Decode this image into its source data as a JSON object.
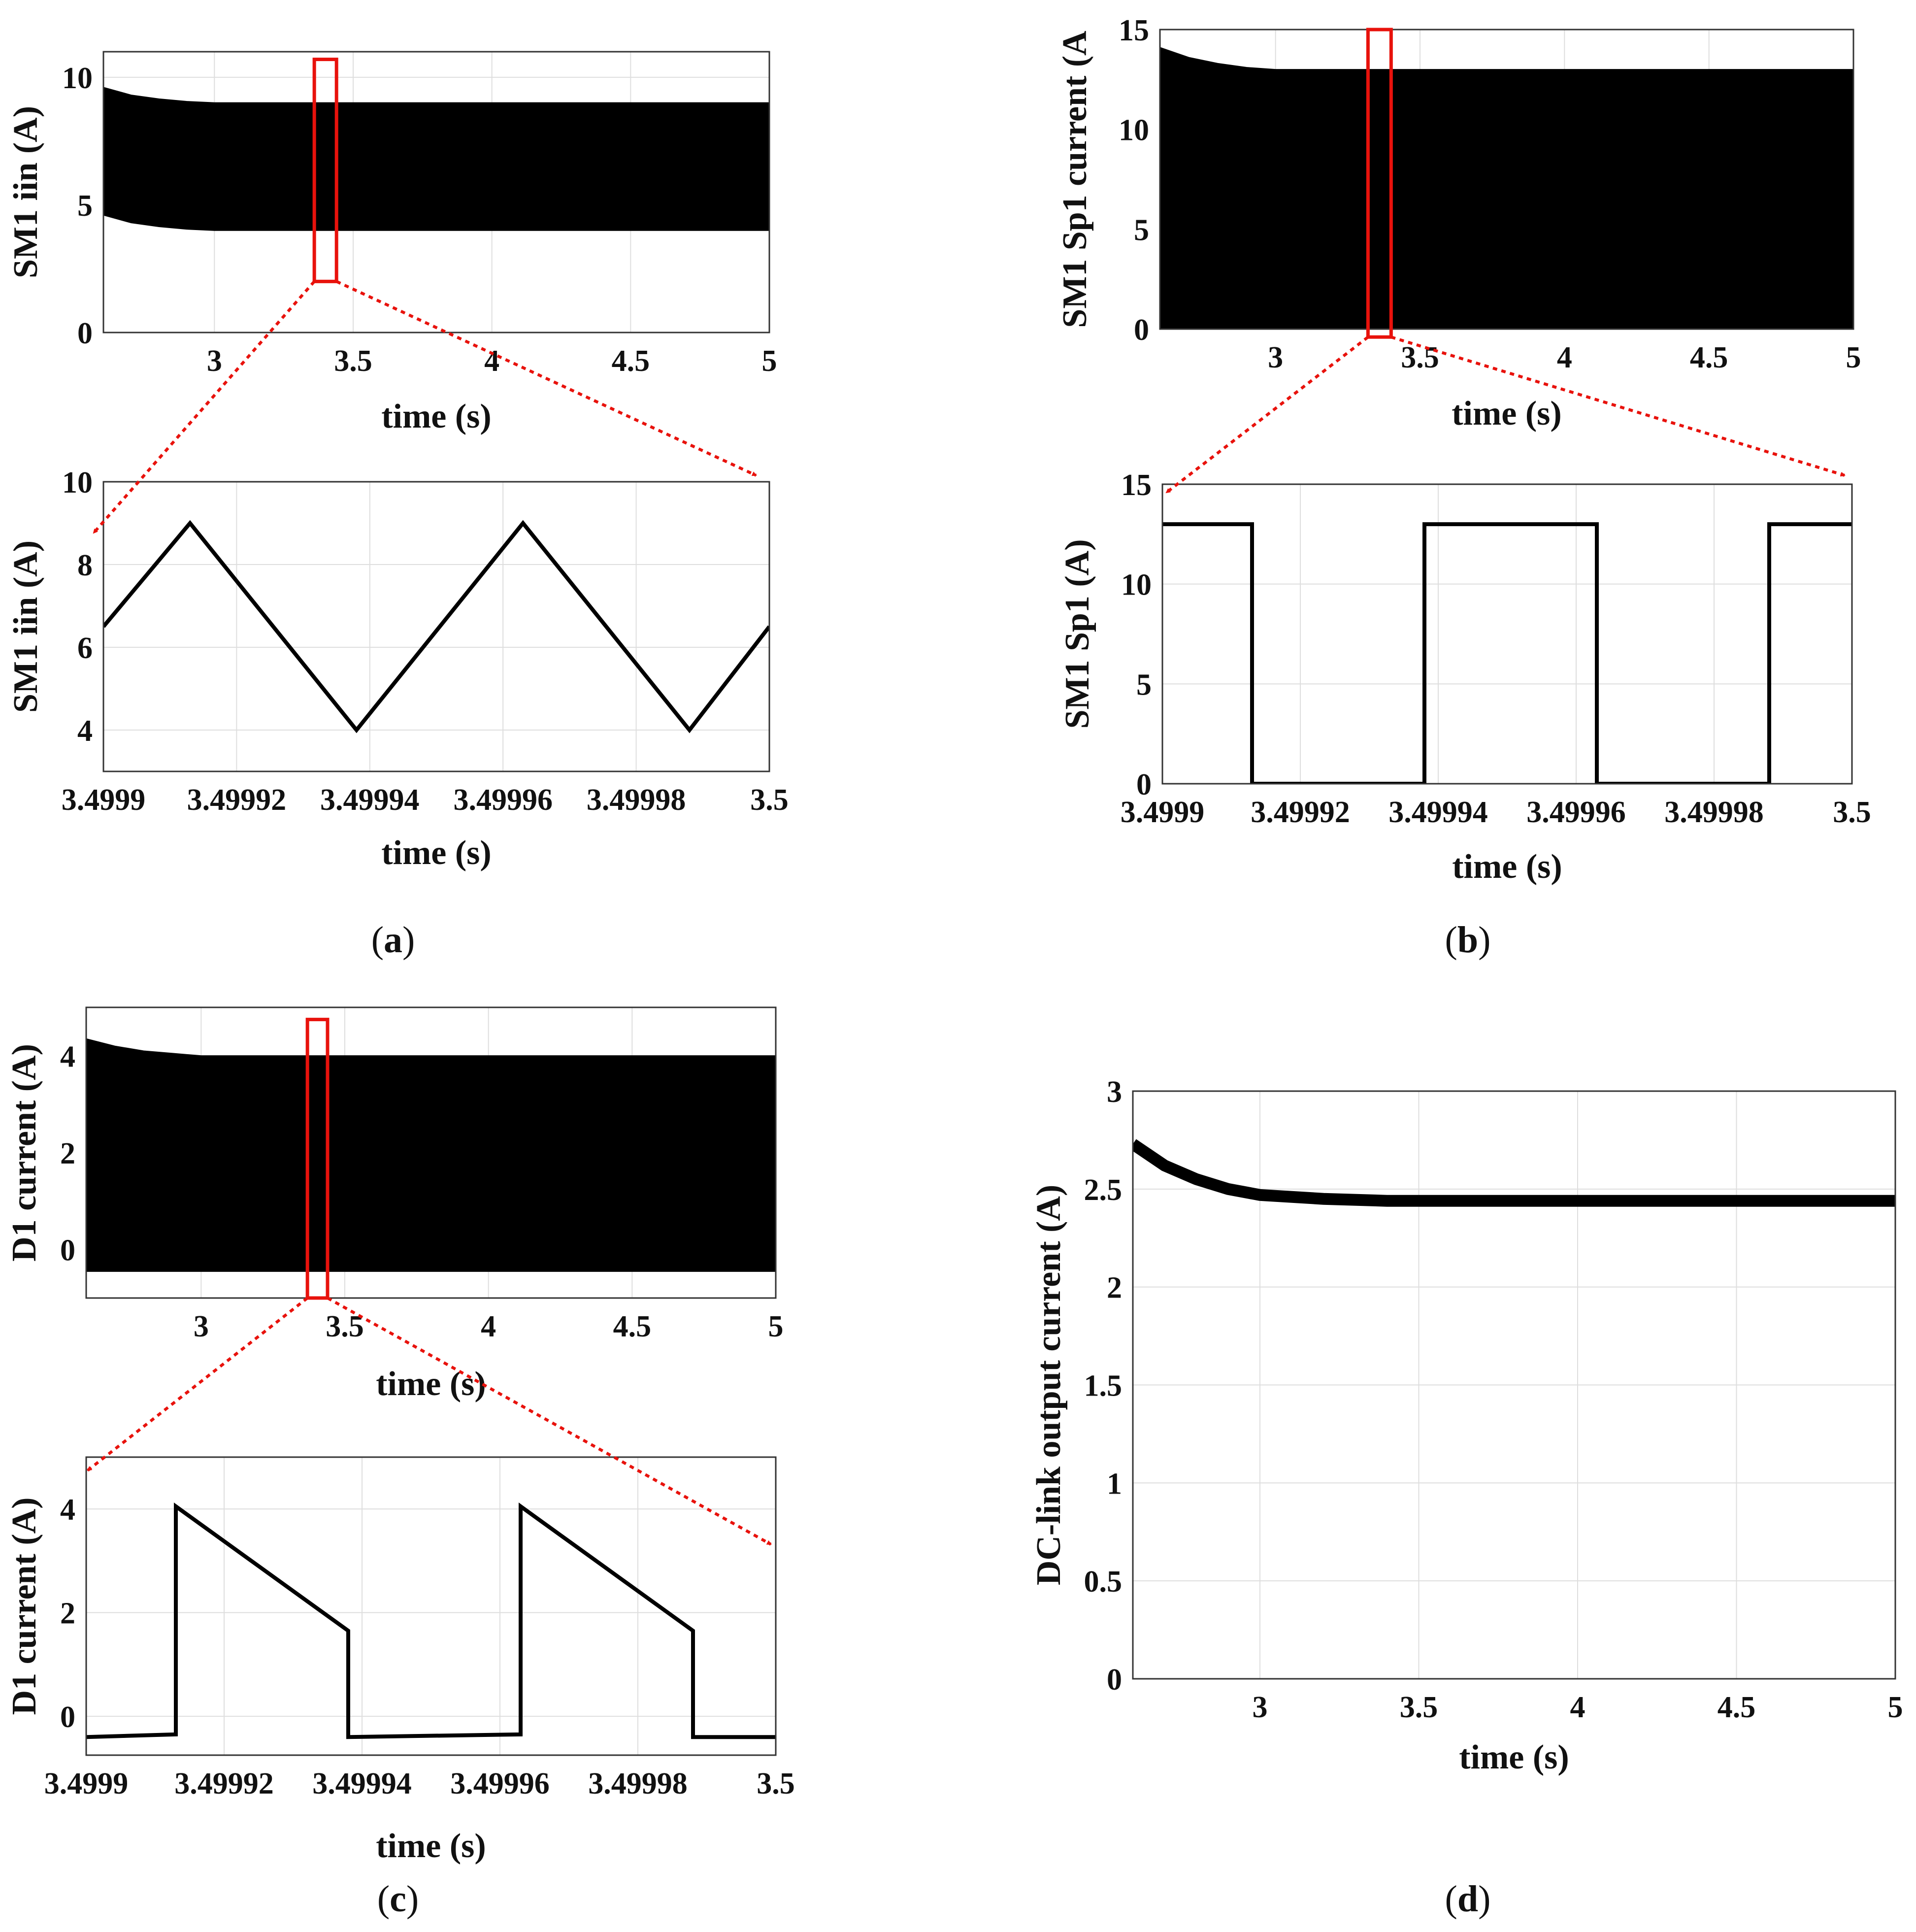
{
  "figure": {
    "captions": [
      {
        "open": "(",
        "letter": "a",
        "close": ")"
      },
      {
        "open": "(",
        "letter": "b",
        "close": ")"
      },
      {
        "open": "(",
        "letter": "c",
        "close": ")"
      },
      {
        "open": "(",
        "letter": "d",
        "close": ")"
      }
    ],
    "colors": {
      "trace": "#000000",
      "highlight": "#e8120c",
      "grid": "#dedede"
    }
  },
  "chart_data": [
    {
      "id": "a_overview",
      "type": "area",
      "title": "",
      "xlabel": "time (s)",
      "ylabel": "SM1 iin (A)",
      "xlim": [
        2.6,
        5
      ],
      "ylim": [
        0,
        11
      ],
      "xticks": [
        {
          "v": 3,
          "label": "3"
        },
        {
          "v": 3.5,
          "label": "3.5"
        },
        {
          "v": 4,
          "label": "4"
        },
        {
          "v": 4.5,
          "label": "4.5"
        },
        {
          "v": 5,
          "label": "5"
        }
      ],
      "yticks": [
        {
          "v": 0,
          "label": "0"
        },
        {
          "v": 5,
          "label": "5"
        },
        {
          "v": 10,
          "label": "10"
        }
      ],
      "series": [
        {
          "name": "upper envelope",
          "x": [
            2.6,
            2.7,
            2.8,
            2.9,
            3.0,
            3.2,
            3.5,
            4.0,
            4.5,
            5.0
          ],
          "y": [
            9.6,
            9.3,
            9.15,
            9.05,
            9.0,
            9.0,
            9.0,
            9.0,
            9.0,
            9.0
          ]
        },
        {
          "name": "lower envelope",
          "x": [
            2.6,
            2.7,
            2.8,
            2.9,
            3.0,
            3.2,
            3.5,
            4.0,
            4.5,
            5.0
          ],
          "y": [
            4.6,
            4.3,
            4.15,
            4.05,
            4.0,
            4.0,
            4.0,
            4.0,
            4.0,
            4.0
          ]
        }
      ],
      "zoom_window": {
        "x": [
          3.36,
          3.44
        ],
        "y": [
          2.0,
          10.7
        ]
      }
    },
    {
      "id": "a_zoom",
      "type": "line",
      "title": "",
      "xlabel": "time (s)",
      "ylabel": "SM1 iin (A)",
      "xlim": [
        3.4999,
        3.5
      ],
      "ylim": [
        3,
        10
      ],
      "xticks": [
        {
          "v": 3.4999,
          "label": "3.4999"
        },
        {
          "v": 3.49992,
          "label": "3.49992"
        },
        {
          "v": 3.49994,
          "label": "3.49994"
        },
        {
          "v": 3.49996,
          "label": "3.49996"
        },
        {
          "v": 3.49998,
          "label": "3.49998"
        },
        {
          "v": 3.5,
          "label": "3.5"
        }
      ],
      "yticks": [
        {
          "v": 4,
          "label": "4"
        },
        {
          "v": 6,
          "label": "6"
        },
        {
          "v": 8,
          "label": "8"
        },
        {
          "v": 10,
          "label": "10"
        }
      ],
      "series": [
        {
          "name": "iin",
          "x": [
            3.4999,
            3.499913,
            3.499938,
            3.499963,
            3.499988,
            3.5
          ],
          "y": [
            6.5,
            9.0,
            4.0,
            9.0,
            4.0,
            6.5
          ]
        }
      ]
    },
    {
      "id": "b_overview",
      "type": "area",
      "title": "",
      "xlabel": "time (s)",
      "ylabel": "SM1 Sp1 current (A",
      "xlim": [
        2.6,
        5
      ],
      "ylim": [
        0,
        15
      ],
      "xticks": [
        {
          "v": 3,
          "label": "3"
        },
        {
          "v": 3.5,
          "label": "3.5"
        },
        {
          "v": 4,
          "label": "4"
        },
        {
          "v": 4.5,
          "label": "4.5"
        },
        {
          "v": 5,
          "label": "5"
        }
      ],
      "yticks": [
        {
          "v": 0,
          "label": "0"
        },
        {
          "v": 5,
          "label": "5"
        },
        {
          "v": 10,
          "label": "10"
        },
        {
          "v": 15,
          "label": "15"
        }
      ],
      "series": [
        {
          "name": "upper envelope",
          "x": [
            2.6,
            2.7,
            2.8,
            2.9,
            3.0,
            3.2,
            3.5,
            4.0,
            4.5,
            5.0
          ],
          "y": [
            14.1,
            13.6,
            13.3,
            13.1,
            13.0,
            13.0,
            13.0,
            13.0,
            13.0,
            13.0
          ]
        },
        {
          "name": "lower envelope",
          "x": [
            2.6,
            5.0
          ],
          "y": [
            0,
            0
          ]
        }
      ],
      "zoom_window": {
        "x": [
          3.32,
          3.4
        ],
        "y": [
          -0.4,
          15.0
        ]
      }
    },
    {
      "id": "b_zoom",
      "type": "line",
      "title": "",
      "xlabel": "time (s)",
      "ylabel": "SM1 Sp1 (A)",
      "xlim": [
        3.4999,
        3.5
      ],
      "ylim": [
        0,
        15
      ],
      "xticks": [
        {
          "v": 3.4999,
          "label": "3.4999"
        },
        {
          "v": 3.49992,
          "label": "3.49992"
        },
        {
          "v": 3.49994,
          "label": "3.49994"
        },
        {
          "v": 3.49996,
          "label": "3.49996"
        },
        {
          "v": 3.49998,
          "label": "3.49998"
        },
        {
          "v": 3.5,
          "label": "3.5"
        }
      ],
      "yticks": [
        {
          "v": 0,
          "label": "0"
        },
        {
          "v": 5,
          "label": "5"
        },
        {
          "v": 10,
          "label": "10"
        },
        {
          "v": 15,
          "label": "15"
        }
      ],
      "series": [
        {
          "name": "Sp1",
          "x": [
            3.4999,
            3.499913,
            3.499913,
            3.499938,
            3.499938,
            3.499963,
            3.499963,
            3.499988,
            3.499988,
            3.5
          ],
          "y": [
            13,
            13,
            0,
            0,
            13,
            13,
            0,
            0,
            13,
            13
          ]
        }
      ]
    },
    {
      "id": "c_overview",
      "type": "area",
      "title": "",
      "xlabel": "time (s)",
      "ylabel": "D1 current (A)",
      "xlim": [
        2.6,
        5
      ],
      "ylim": [
        -1,
        5
      ],
      "xticks": [
        {
          "v": 3,
          "label": "3"
        },
        {
          "v": 3.5,
          "label": "3.5"
        },
        {
          "v": 4,
          "label": "4"
        },
        {
          "v": 4.5,
          "label": "4.5"
        },
        {
          "v": 5,
          "label": "5"
        }
      ],
      "yticks": [
        {
          "v": 0,
          "label": "0"
        },
        {
          "v": 2,
          "label": "2"
        },
        {
          "v": 4,
          "label": "4"
        }
      ],
      "series": [
        {
          "name": "upper envelope",
          "x": [
            2.6,
            2.7,
            2.8,
            2.9,
            3.0,
            3.2,
            3.5,
            4.0,
            4.5,
            5.0
          ],
          "y": [
            4.35,
            4.2,
            4.1,
            4.05,
            4.0,
            4.0,
            4.0,
            4.0,
            4.0,
            4.0
          ]
        },
        {
          "name": "lower envelope",
          "x": [
            2.6,
            5.0
          ],
          "y": [
            -0.45,
            -0.45
          ]
        }
      ],
      "zoom_window": {
        "x": [
          3.37,
          3.44
        ],
        "y": [
          -1.0,
          4.75
        ]
      }
    },
    {
      "id": "c_zoom",
      "type": "line",
      "title": "",
      "xlabel": "time (s)",
      "ylabel": "D1 current (A)",
      "xlim": [
        3.4999,
        3.5
      ],
      "ylim": [
        -0.75,
        5
      ],
      "xticks": [
        {
          "v": 3.4999,
          "label": "3.4999"
        },
        {
          "v": 3.49992,
          "label": "3.49992"
        },
        {
          "v": 3.49994,
          "label": "3.49994"
        },
        {
          "v": 3.49996,
          "label": "3.49996"
        },
        {
          "v": 3.49998,
          "label": "3.49998"
        },
        {
          "v": 3.5,
          "label": "3.5"
        }
      ],
      "yticks": [
        {
          "v": 0,
          "label": "0"
        },
        {
          "v": 2,
          "label": "2"
        },
        {
          "v": 4,
          "label": "4"
        }
      ],
      "series": [
        {
          "name": "D1",
          "x": [
            3.4999,
            3.499913,
            3.499913,
            3.499938,
            3.499938,
            3.499963,
            3.499963,
            3.499988,
            3.499988,
            3.5
          ],
          "y": [
            -0.4,
            -0.35,
            4.05,
            1.65,
            -0.4,
            -0.35,
            4.05,
            1.65,
            -0.4,
            -0.4
          ]
        }
      ]
    },
    {
      "id": "d",
      "type": "line",
      "title": "",
      "xlabel": "time (s)",
      "ylabel": "DC-link output current (A)",
      "xlim": [
        2.6,
        5
      ],
      "ylim": [
        0,
        3
      ],
      "xticks": [
        {
          "v": 3,
          "label": "3"
        },
        {
          "v": 3.5,
          "label": "3.5"
        },
        {
          "v": 4,
          "label": "4"
        },
        {
          "v": 4.5,
          "label": "4.5"
        },
        {
          "v": 5,
          "label": "5"
        }
      ],
      "yticks": [
        {
          "v": 0,
          "label": "0"
        },
        {
          "v": 0.5,
          "label": "0.5"
        },
        {
          "v": 1,
          "label": "1"
        },
        {
          "v": 1.5,
          "label": "1.5"
        },
        {
          "v": 2,
          "label": "2"
        },
        {
          "v": 2.5,
          "label": "2.5"
        },
        {
          "v": 3,
          "label": "3"
        }
      ],
      "series": [
        {
          "name": "DC-link output current",
          "x": [
            2.6,
            2.7,
            2.8,
            2.9,
            3.0,
            3.2,
            3.4,
            3.6,
            4.0,
            4.5,
            5.0
          ],
          "y": [
            2.73,
            2.62,
            2.55,
            2.5,
            2.47,
            2.45,
            2.44,
            2.44,
            2.44,
            2.44,
            2.44
          ]
        }
      ]
    }
  ]
}
